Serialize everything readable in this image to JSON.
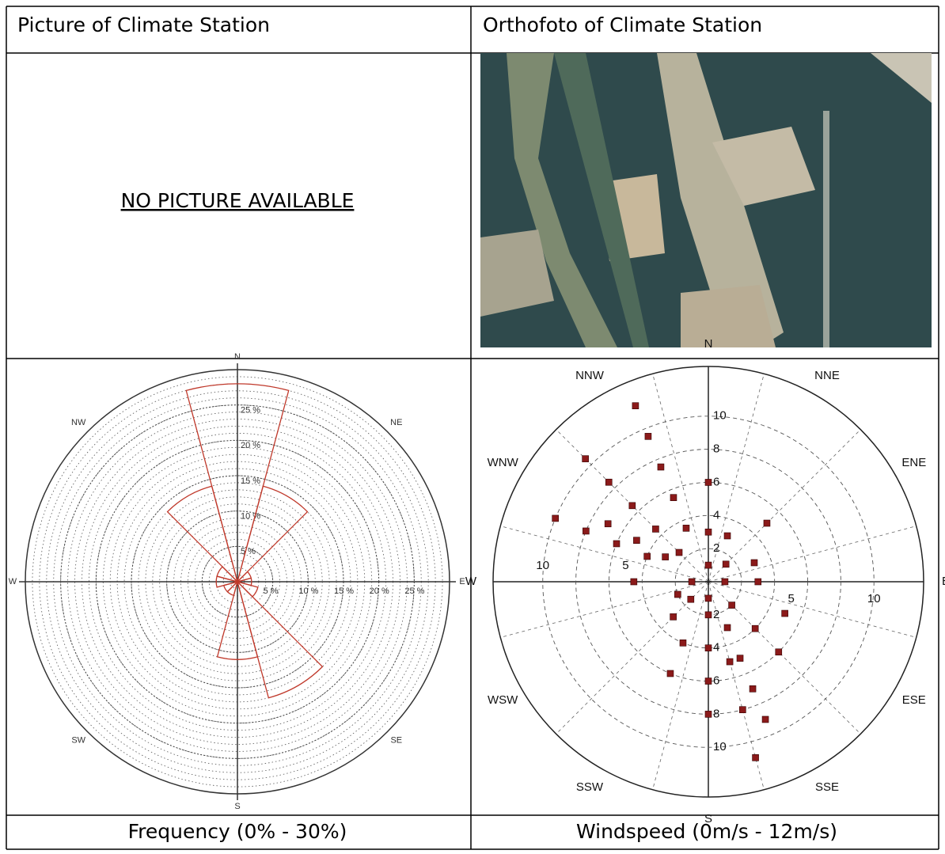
{
  "table": {
    "header": [
      "Picture of Climate Station",
      "Orthofoto of Climate Station"
    ],
    "no_picture": "NO PICTURE AVAILABLE",
    "captions": [
      "Frequency (0% - 30%)",
      "Windspeed (0m/s - 12m/s)"
    ]
  },
  "frequency_rose": {
    "type": "polar-bar",
    "directions": [
      "N",
      "NE",
      "E",
      "SE",
      "S",
      "SW",
      "W",
      "NW"
    ],
    "ring_labels": [
      {
        "value": 5,
        "label": "5 %"
      },
      {
        "value": 10,
        "label": "10 %"
      },
      {
        "value": 15,
        "label": "15 %"
      },
      {
        "value": 20,
        "label": "20 %"
      },
      {
        "value": 25,
        "label": "25 %"
      }
    ],
    "rlim": [
      0,
      30
    ],
    "sector_angles": [
      0,
      30,
      60,
      90,
      120,
      150,
      180,
      210,
      240,
      270,
      300,
      330
    ],
    "values": [
      28,
      14,
      2,
      2,
      3,
      17,
      11,
      2,
      2,
      3,
      3,
      14
    ],
    "color": "#c0392b"
  },
  "windspeed_rose": {
    "type": "polar-scatter",
    "directions": [
      "N",
      "NNE",
      "ENE",
      "E",
      "ESE",
      "SSE",
      "S",
      "SSW",
      "WSW",
      "W",
      "WNW",
      "NNW"
    ],
    "ring_ticks": [
      2,
      4,
      6,
      8,
      10
    ],
    "axis_ticks": [
      5,
      10
    ],
    "rlim": [
      0,
      13
    ],
    "color": "#8b1a1a",
    "direction_deg": [
      337.5,
      337.5,
      337.5,
      337.5,
      337.5,
      315,
      315,
      315,
      315,
      315,
      292.5,
      292.5,
      292.5,
      292.5,
      300,
      300,
      300,
      0,
      0,
      22.5,
      45,
      67.5,
      90,
      112.5,
      135,
      135,
      135,
      157.5,
      157.5,
      157.5,
      157.5,
      165,
      165,
      165,
      180,
      180,
      180,
      180,
      202.5,
      202.5,
      225,
      247.5,
      270,
      0,
      90,
      180,
      270,
      45,
      225
    ],
    "speed": [
      11.5,
      9.5,
      7.5,
      5.5,
      3.5,
      10.5,
      8.5,
      6.5,
      4.5,
      2.5,
      10,
      8,
      6,
      4,
      7,
      5,
      3,
      6,
      3,
      3,
      5,
      3,
      3,
      5,
      6,
      4,
      2,
      9,
      7,
      5,
      3,
      11,
      8,
      5,
      8,
      6,
      4,
      2,
      6,
      4,
      3,
      2,
      4.5,
      1,
      1,
      1,
      1,
      1.5,
      1.5
    ]
  }
}
